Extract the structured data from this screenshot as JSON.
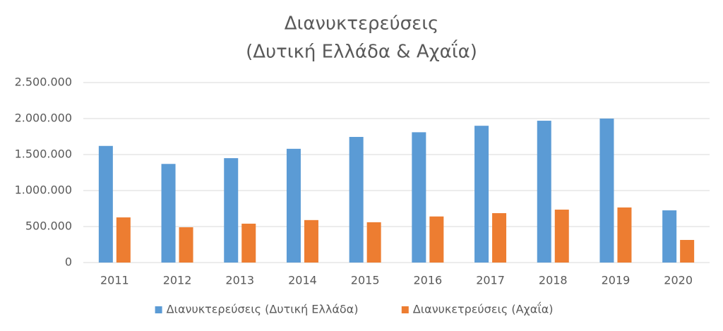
{
  "chart_data": {
    "type": "bar",
    "title": [
      "Διανυκτερεύσεις",
      "(Δυτική Ελλάδα & Αχαΐα)"
    ],
    "categories": [
      "2011",
      "2012",
      "2013",
      "2014",
      "2015",
      "2016",
      "2017",
      "2018",
      "2019",
      "2020"
    ],
    "series": [
      {
        "name": "Διανυκτερεύσεις (Δυτική Ελλάδα)",
        "color": "#5b9bd5",
        "values": [
          1620000,
          1370000,
          1450000,
          1580000,
          1745000,
          1810000,
          1900000,
          1970000,
          2000000,
          725000
        ]
      },
      {
        "name": "Διανυκετρεύσεις (Αχαΐα)",
        "color": "#ed7d31",
        "values": [
          627000,
          490000,
          540000,
          590000,
          560000,
          640000,
          686000,
          735000,
          765000,
          314000
        ]
      }
    ],
    "ylim": [
      0,
      2500000
    ],
    "yticks": [
      0,
      {
        "value": 500000,
        "label": "500.000"
      },
      {
        "value": 1000000,
        "label": "1.000.000"
      },
      {
        "value": 1500000,
        "label": "1.500.000"
      },
      {
        "value": 2000000,
        "label": "2.000.000"
      },
      {
        "value": 2500000,
        "label": "2.500.000"
      }
    ],
    "grid": true,
    "legend": "bottom"
  }
}
